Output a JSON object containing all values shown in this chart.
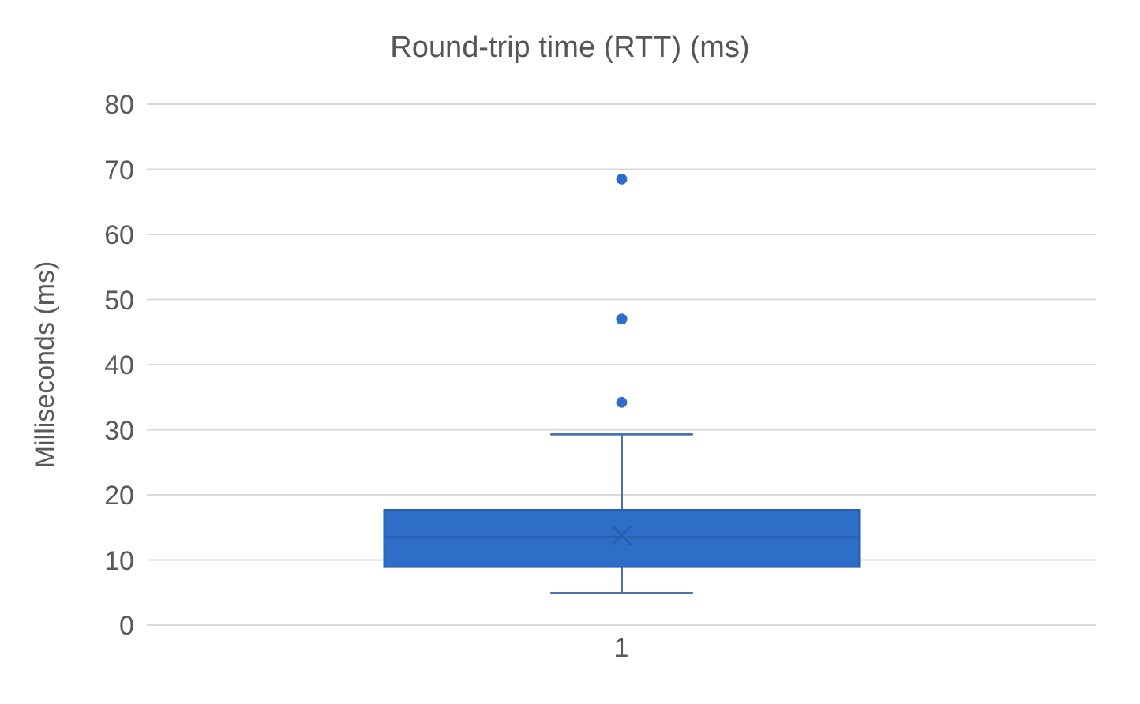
{
  "chart_data": {
    "type": "box",
    "title": "Round-trip time (RTT) (ms)",
    "ylabel": "Milliseconds (ms)",
    "categories": [
      "1"
    ],
    "boxes": [
      {
        "low": 4.9,
        "q1": 8.9,
        "median": 13.5,
        "q3": 17.7,
        "high": 29.3,
        "mean": 13.8,
        "outliers": [
          34.2,
          47,
          68.5
        ]
      }
    ],
    "color": "#2f6ec8",
    "ylim": [
      0,
      80
    ],
    "yticks": [
      0,
      10,
      20,
      30,
      40,
      50,
      60,
      70,
      80
    ],
    "grid": "y",
    "legend": false
  }
}
